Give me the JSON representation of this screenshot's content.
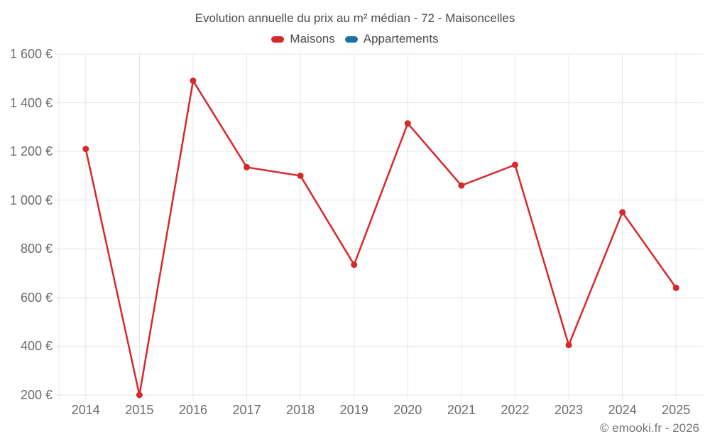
{
  "watermark": "© emooki.fr - 2026",
  "chart_data": {
    "type": "line",
    "title": "Evolution annuelle du prix au m² médian - 72 - Maisoncelles",
    "categories": [
      2014,
      2015,
      2016,
      2017,
      2018,
      2019,
      2020,
      2021,
      2022,
      2023,
      2024,
      2025
    ],
    "series": [
      {
        "name": "Maisons",
        "color": "#d7282d",
        "values": [
          1210,
          200,
          1490,
          1135,
          1100,
          735,
          1315,
          1060,
          1145,
          405,
          950,
          640
        ]
      },
      {
        "name": "Appartements",
        "color": "#1973a8",
        "values": []
      }
    ],
    "xlabel": "",
    "ylabel": "",
    "ylim": [
      200,
      1600
    ],
    "y_ticks": [
      200,
      400,
      600,
      800,
      1000,
      1200,
      1400,
      1600
    ],
    "y_tick_suffix": " €",
    "grid": true,
    "legend_position": "top",
    "marker": "circle",
    "gridline_color": "#e6e6e6"
  }
}
